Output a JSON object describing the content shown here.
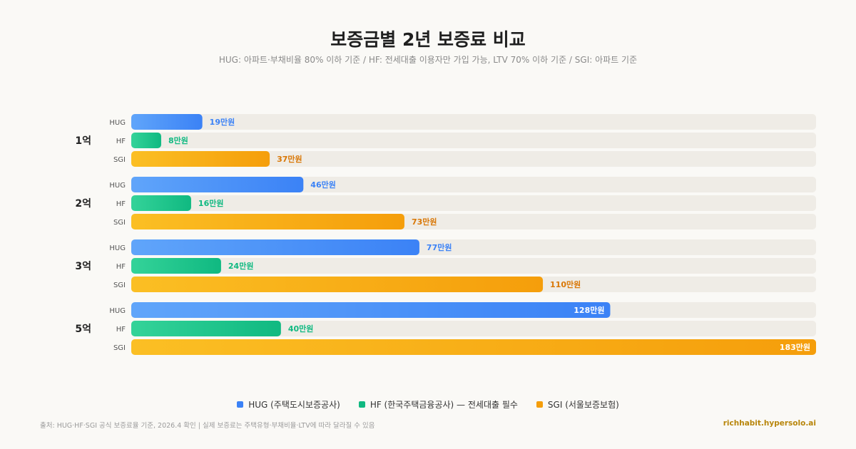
{
  "title": "보증금별 2년 보증료 비교",
  "subtitle": "HUG: 아파트·부채비율 80% 이하 기준 / HF: 전세대출 이용자만 가입 가능, LTV 70% 이하 기준 / SGI: 아파트 기준",
  "footer": {
    "source": "출처: HUG·HF·SGI 공식 보증료율 기준, 2026.4 확인 | 실제 보증료는 주택유형·부채비율·LTV에 따라 달라질 수 있음",
    "site": "richhabit.hypersolo.ai"
  },
  "legend": [
    {
      "label": "HUG (주택도시보증공사)",
      "color": "#3b82f6"
    },
    {
      "label": "HF (한국주택금융공사) — 전세대출 필수",
      "color": "#10b981"
    },
    {
      "label": "SGI (서울보증보험)",
      "color": "#f59e0b"
    }
  ],
  "chart_data": {
    "type": "bar",
    "orientation": "horizontal",
    "title": "보증금별 2년 보증료 비교",
    "categories": [
      "1억",
      "2억",
      "3억",
      "5억"
    ],
    "series": [
      {
        "name": "HUG",
        "values": [
          19,
          46,
          77,
          128
        ],
        "labels": [
          "19만원",
          "46만원",
          "77만원",
          "128만원"
        ],
        "color": "#3b82f6",
        "light": "#60a5fa"
      },
      {
        "name": "HF",
        "values": [
          8,
          16,
          24,
          40
        ],
        "labels": [
          "8만원",
          "16만원",
          "24만원",
          "40만원"
        ],
        "color": "#10b981",
        "light": "#34d399"
      },
      {
        "name": "SGI",
        "values": [
          37,
          73,
          110,
          183
        ],
        "labels": [
          "37만원",
          "73만원",
          "110만원",
          "183만원"
        ],
        "color": "#f59e0b",
        "light": "#fbbf24"
      }
    ],
    "unit": "만원",
    "xlim": [
      0,
      183
    ],
    "grid": false,
    "legend_position": "bottom"
  }
}
